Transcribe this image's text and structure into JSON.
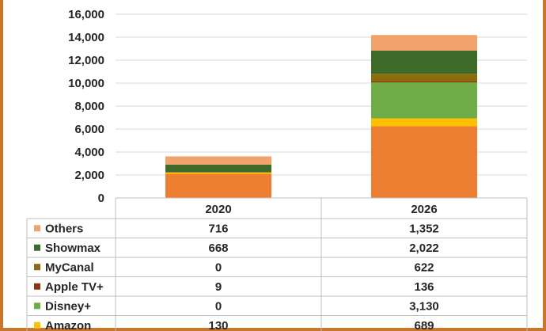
{
  "chart_data": {
    "type": "bar",
    "stacked": true,
    "categories": [
      "2020",
      "2026"
    ],
    "ylim": [
      0,
      16000
    ],
    "yticks": [
      "0",
      "2,000",
      "4,000",
      "6,000",
      "8,000",
      "10,000",
      "12,000",
      "14,000",
      "16,000"
    ],
    "grid": true,
    "legend_position": "data-table",
    "series": [
      {
        "name": "Others",
        "color": "#f2a36c",
        "values": [
          716,
          1352
        ],
        "labels": [
          "716",
          "1,352"
        ]
      },
      {
        "name": "Showmax",
        "color": "#3e6b2a",
        "values": [
          668,
          2022
        ],
        "labels": [
          "668",
          "2,022"
        ]
      },
      {
        "name": "MyCanal",
        "color": "#8a6d0a",
        "values": [
          0,
          622
        ],
        "labels": [
          "0",
          "622"
        ]
      },
      {
        "name": "Apple TV+",
        "color": "#8b3a0f",
        "values": [
          9,
          136
        ],
        "labels": [
          "9",
          "136"
        ]
      },
      {
        "name": "Disney+",
        "color": "#70ad47",
        "values": [
          0,
          3130
        ],
        "labels": [
          "0",
          "3,130"
        ]
      },
      {
        "name": "Amazon",
        "color": "#ffc000",
        "values": [
          130,
          689
        ],
        "labels": [
          "130",
          "689"
        ]
      },
      {
        "name": "",
        "color": "#ed7d31",
        "values": [
          2100,
          6240
        ],
        "labels": [
          "",
          ""
        ]
      }
    ]
  }
}
